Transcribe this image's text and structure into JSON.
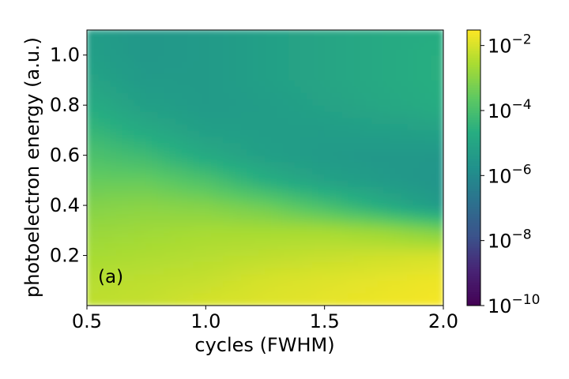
{
  "chart_data": {
    "type": "heatmap",
    "panel_label": "(a)",
    "xlabel": "cycles (FWHM)",
    "ylabel": "photoelectron energy (a.u.)",
    "xlim": [
      0.5,
      2.0
    ],
    "ylim": [
      0.0,
      1.1
    ],
    "x_ticks": [
      0.5,
      1.0,
      1.5,
      2.0
    ],
    "x_tick_labels": [
      "0.5",
      "1.0",
      "1.5",
      "2.0"
    ],
    "y_ticks": [
      0.2,
      0.4,
      0.6,
      0.8,
      1.0
    ],
    "y_tick_labels": [
      "0.2",
      "0.4",
      "0.6",
      "0.8",
      "1.0"
    ],
    "colorbar": {
      "scale": "log",
      "colormap": "viridis",
      "range": [
        1e-10,
        0.03
      ],
      "ticks": [
        1e-10,
        1e-08,
        1e-06,
        0.0001,
        0.01
      ],
      "tick_bases": [
        "10",
        "10",
        "10",
        "10",
        "10"
      ],
      "tick_exponents": [
        "−10",
        "−8",
        "−6",
        "−4",
        "−2"
      ]
    },
    "grid": false,
    "x": [
      0.5,
      0.75,
      1.0,
      1.25,
      1.5,
      1.75,
      2.0
    ],
    "y": [
      0.0,
      0.1,
      0.2,
      0.3,
      0.4,
      0.5,
      0.6,
      0.7,
      0.8,
      0.9,
      1.0,
      1.1
    ],
    "z_log10": [
      [
        -2.3,
        -2.2,
        -2.0,
        -1.9,
        -1.8,
        -1.7,
        -1.6
      ],
      [
        -2.4,
        -2.3,
        -2.2,
        -2.0,
        -1.9,
        -1.8,
        -1.7
      ],
      [
        -2.6,
        -2.5,
        -2.4,
        -2.3,
        -2.2,
        -2.1,
        -2.0
      ],
      [
        -2.8,
        -2.7,
        -2.6,
        -2.6,
        -2.6,
        -2.8,
        -3.2
      ],
      [
        -3.1,
        -3.0,
        -3.1,
        -3.4,
        -4.0,
        -4.7,
        -5.4
      ],
      [
        -3.5,
        -3.5,
        -3.9,
        -4.6,
        -5.1,
        -5.4,
        -5.6
      ],
      [
        -3.9,
        -4.2,
        -4.8,
        -5.2,
        -5.4,
        -5.5,
        -5.5
      ],
      [
        -4.3,
        -4.8,
        -5.2,
        -5.3,
        -5.3,
        -5.2,
        -5.1
      ],
      [
        -4.7,
        -5.2,
        -5.4,
        -5.3,
        -5.1,
        -4.9,
        -4.7
      ],
      [
        -5.0,
        -5.4,
        -5.4,
        -5.2,
        -5.0,
        -4.8,
        -4.6
      ],
      [
        -5.2,
        -5.5,
        -5.4,
        -5.2,
        -5.0,
        -4.8,
        -4.6
      ],
      [
        -5.3,
        -5.5,
        -5.4,
        -5.2,
        -5.0,
        -4.8,
        -4.7
      ]
    ]
  }
}
